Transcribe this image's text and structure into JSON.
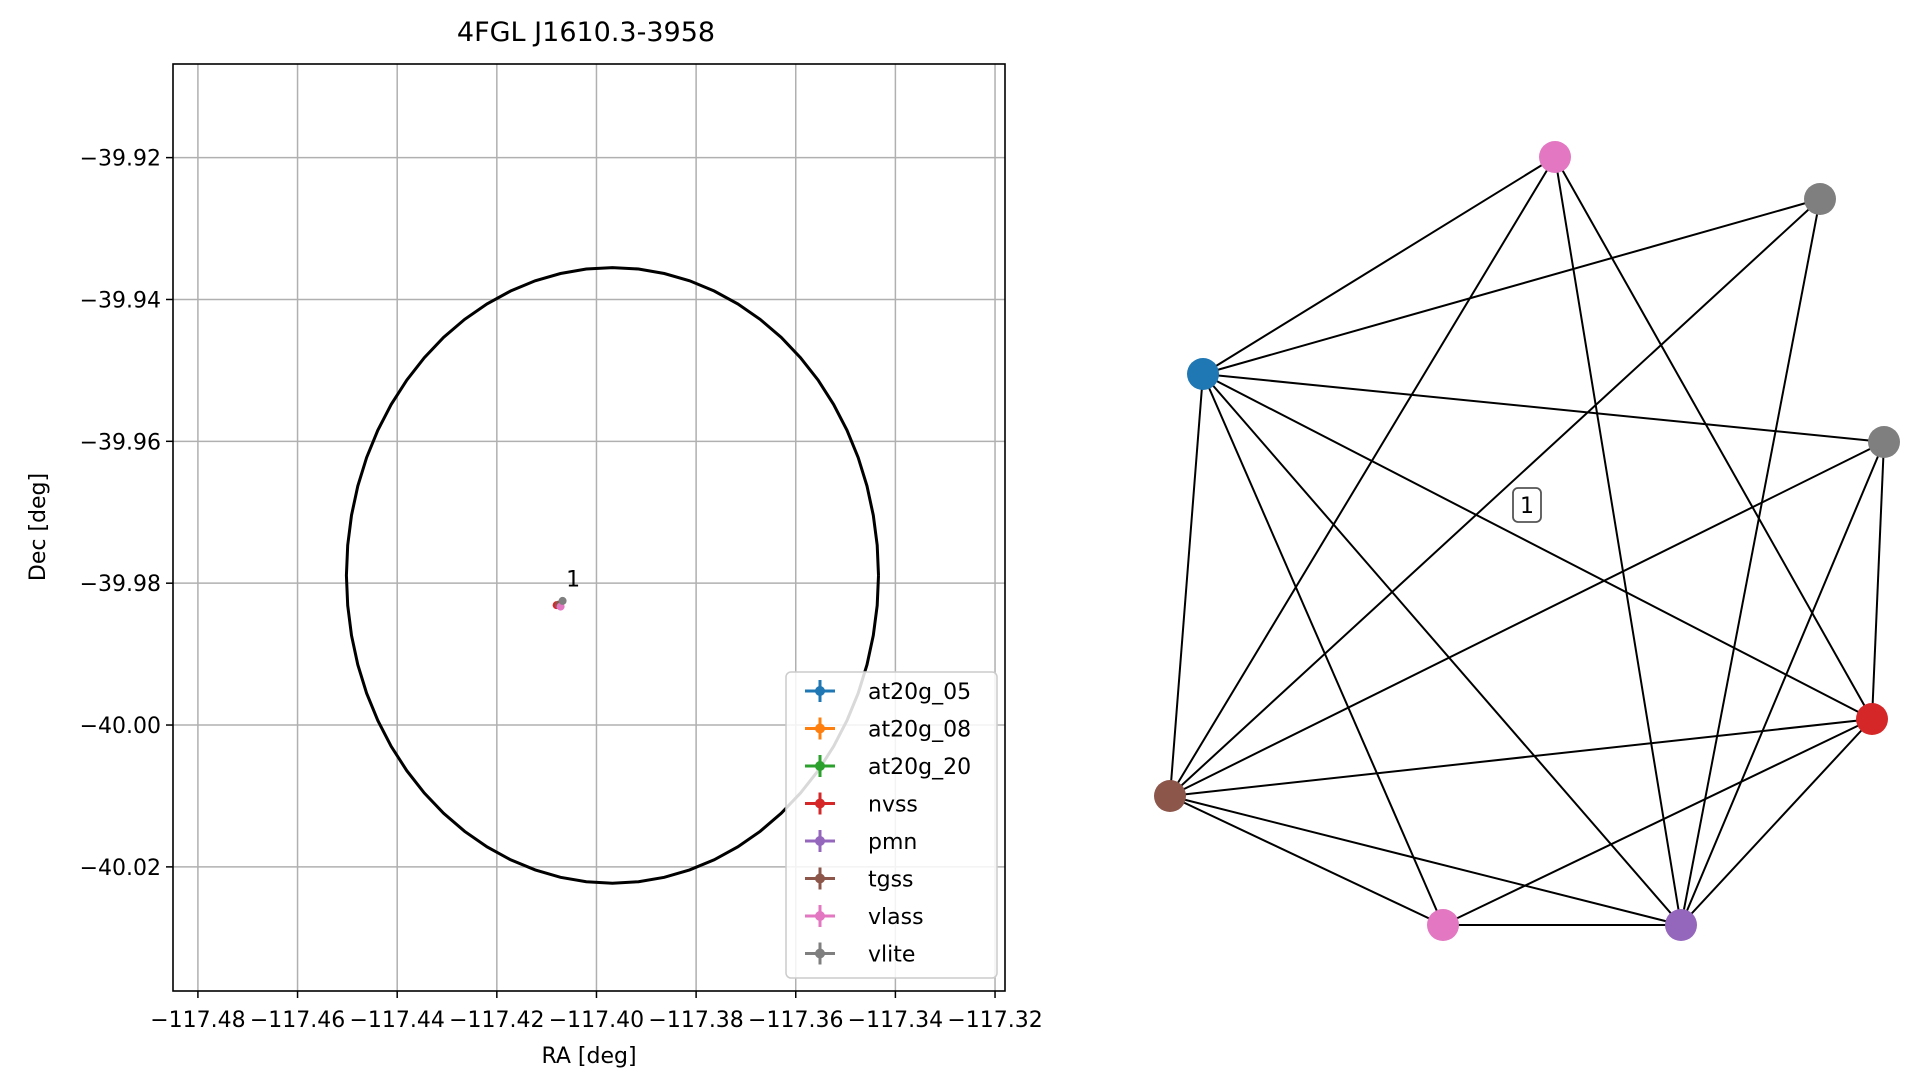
{
  "chart_data": [
    {
      "type": "scatter",
      "title": "4FGL J1610.3-3958",
      "xlabel": "RA [deg]",
      "ylabel": "Dec [deg]",
      "xlim": [
        -117.485,
        -117.318
      ],
      "ylim": [
        -40.0375,
        -39.9068
      ],
      "x_ticks": [
        -117.48,
        -117.46,
        -117.44,
        -117.42,
        -117.4,
        -117.38,
        -117.36,
        -117.34,
        -117.32
      ],
      "x_tick_labels": [
        "−117.48",
        "−117.46",
        "−117.44",
        "−117.42",
        "−117.40",
        "−117.38",
        "−117.36",
        "−117.34",
        "−117.32"
      ],
      "y_ticks": [
        -39.92,
        -39.94,
        -39.96,
        -39.98,
        -40.0,
        -40.02
      ],
      "y_tick_labels": [
        "−39.92",
        "−39.94",
        "−39.96",
        "−39.98",
        "−40.00",
        "−40.02"
      ],
      "grid": true,
      "legend_position": "lower-right",
      "ellipse": {
        "center": [
          -117.3968,
          -39.9789
        ],
        "ra_half_width": 0.0534,
        "dec_half_height": 0.0434,
        "color": "#000000"
      },
      "series": [
        {
          "name": "at20g_05",
          "color": "#1f77b4",
          "x": [
            -117.4075
          ],
          "y": [
            -39.9831
          ]
        },
        {
          "name": "at20g_08",
          "color": "#ff7f0e",
          "x": [
            -117.4075
          ],
          "y": [
            -39.9831
          ]
        },
        {
          "name": "at20g_20",
          "color": "#2ca02c",
          "x": [
            -117.4075
          ],
          "y": [
            -39.9831
          ]
        },
        {
          "name": "nvss",
          "color": "#d62728",
          "x": [
            -117.408
          ],
          "y": [
            -39.9831
          ]
        },
        {
          "name": "pmn",
          "color": "#9467bd",
          "x": [
            -117.4075
          ],
          "y": [
            -39.9831
          ]
        },
        {
          "name": "tgss",
          "color": "#8c564b",
          "x": [
            -117.4075
          ],
          "y": [
            -39.983
          ]
        },
        {
          "name": "vlass",
          "color": "#e377c2",
          "x": [
            -117.4072
          ],
          "y": [
            -39.9833
          ]
        },
        {
          "name": "vlite",
          "color": "#7f7f7f",
          "x": [
            -117.4068
          ],
          "y": [
            -39.9825
          ]
        }
      ],
      "annotations": [
        {
          "text": "1",
          "x": -117.4065,
          "y": -39.9805
        }
      ]
    },
    {
      "type": "network",
      "nodes": [
        {
          "id": "n_vlass_top",
          "color": "#e377c2"
        },
        {
          "id": "n_vlite_top",
          "color": "#7f7f7f"
        },
        {
          "id": "n_at20g",
          "color": "#1f77b4"
        },
        {
          "id": "n_vlite_right",
          "color": "#7f7f7f"
        },
        {
          "id": "n_nvss",
          "color": "#d62728"
        },
        {
          "id": "n_tgss",
          "color": "#8c564b"
        },
        {
          "id": "n_vlass_bottom",
          "color": "#e377c2"
        },
        {
          "id": "n_pmn",
          "color": "#9467bd"
        }
      ],
      "edges": [
        [
          "n_at20g",
          "n_vlass_top"
        ],
        [
          "n_at20g",
          "n_vlite_top"
        ],
        [
          "n_at20g",
          "n_vlite_right"
        ],
        [
          "n_at20g",
          "n_nvss"
        ],
        [
          "n_at20g",
          "n_tgss"
        ],
        [
          "n_at20g",
          "n_vlass_bottom"
        ],
        [
          "n_at20g",
          "n_pmn"
        ],
        [
          "n_vlass_top",
          "n_tgss"
        ],
        [
          "n_vlass_top",
          "n_pmn"
        ],
        [
          "n_vlass_top",
          "n_nvss"
        ],
        [
          "n_vlite_top",
          "n_tgss"
        ],
        [
          "n_vlite_top",
          "n_pmn"
        ],
        [
          "n_vlite_right",
          "n_tgss"
        ],
        [
          "n_vlite_right",
          "n_nvss"
        ],
        [
          "n_vlite_right",
          "n_pmn"
        ],
        [
          "n_tgss",
          "n_nvss"
        ],
        [
          "n_tgss",
          "n_vlass_bottom"
        ],
        [
          "n_tgss",
          "n_pmn"
        ],
        [
          "n_vlass_bottom",
          "n_pmn"
        ],
        [
          "n_vlass_bottom",
          "n_nvss"
        ],
        [
          "n_pmn",
          "n_nvss"
        ]
      ],
      "annotations": [
        {
          "text": "1"
        }
      ]
    }
  ]
}
